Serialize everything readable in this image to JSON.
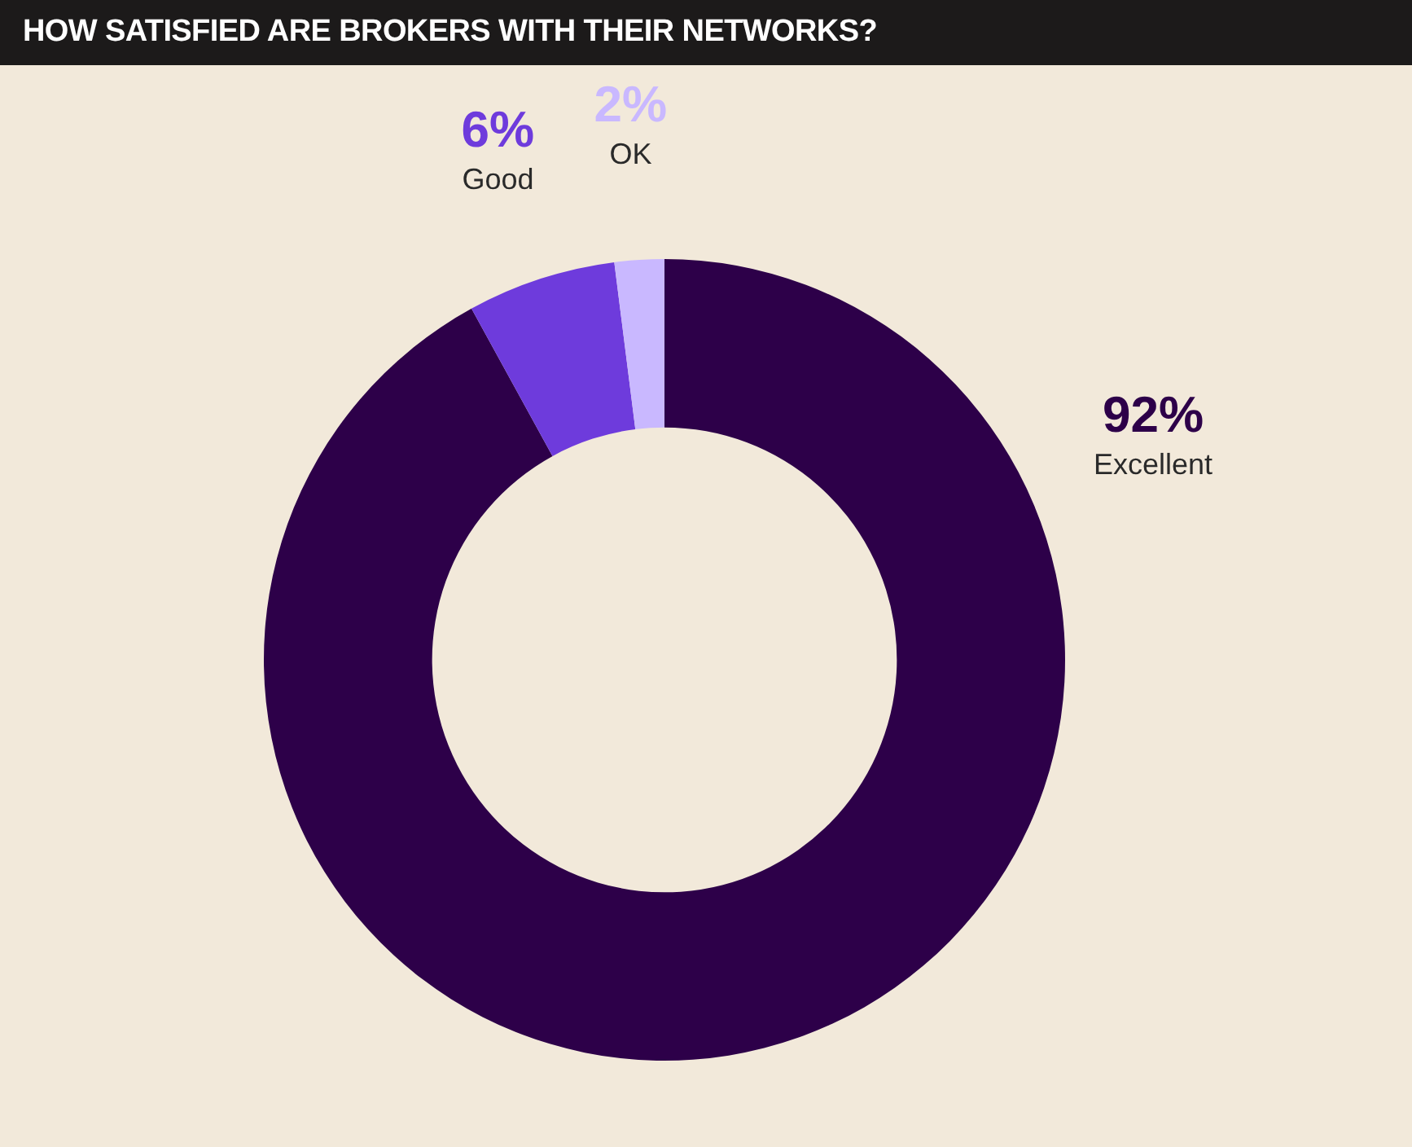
{
  "chart_data": {
    "type": "donut",
    "title": "HOW SATISFIED ARE BROKERS WITH THEIR NETWORKS?",
    "categories": [
      "Excellent",
      "Good",
      "OK"
    ],
    "values": [
      92,
      6,
      2
    ],
    "value_labels": [
      "92%",
      "6%",
      "2%"
    ],
    "colors": [
      "#2d0049",
      "#6e3bdc",
      "#c9b8ff"
    ],
    "legend": false
  }
}
